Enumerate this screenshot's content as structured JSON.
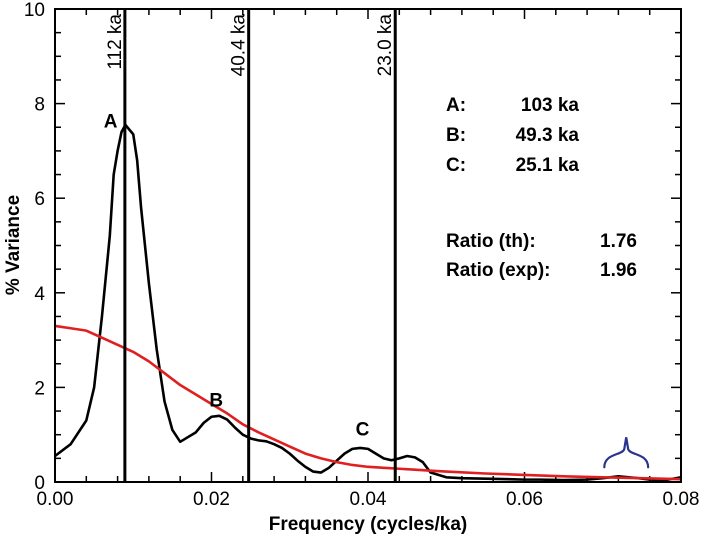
{
  "chart_data": {
    "type": "line",
    "xlabel": "Frequency (cycles/ka)",
    "ylabel": "% Variance",
    "xlim": [
      0,
      0.08
    ],
    "ylim": [
      0,
      10
    ],
    "x_ticks": [
      0.0,
      0.02,
      0.04,
      0.06,
      0.08
    ],
    "x_tick_labels": [
      "0.00",
      "0.02",
      "0.04",
      "0.06",
      "0.08"
    ],
    "y_ticks": [
      0,
      2,
      4,
      6,
      8,
      10
    ],
    "y_tick_labels": [
      "0",
      "2",
      "4",
      "6",
      "8",
      "10"
    ],
    "grid": false,
    "series": [
      {
        "color": "#000000",
        "points": [
          [
            0.0,
            0.55
          ],
          [
            0.002,
            0.8
          ],
          [
            0.004,
            1.3
          ],
          [
            0.005,
            2.0
          ],
          [
            0.006,
            3.5
          ],
          [
            0.007,
            5.2
          ],
          [
            0.0075,
            6.5
          ],
          [
            0.008,
            7.0
          ],
          [
            0.0085,
            7.4
          ],
          [
            0.009,
            7.55
          ],
          [
            0.0095,
            7.45
          ],
          [
            0.01,
            7.35
          ],
          [
            0.0105,
            6.8
          ],
          [
            0.011,
            5.8
          ],
          [
            0.012,
            4.2
          ],
          [
            0.013,
            2.8
          ],
          [
            0.014,
            1.7
          ],
          [
            0.015,
            1.1
          ],
          [
            0.016,
            0.85
          ],
          [
            0.017,
            0.95
          ],
          [
            0.018,
            1.05
          ],
          [
            0.019,
            1.25
          ],
          [
            0.02,
            1.38
          ],
          [
            0.021,
            1.4
          ],
          [
            0.022,
            1.32
          ],
          [
            0.023,
            1.15
          ],
          [
            0.024,
            1.0
          ],
          [
            0.025,
            0.92
          ],
          [
            0.026,
            0.88
          ],
          [
            0.027,
            0.86
          ],
          [
            0.028,
            0.8
          ],
          [
            0.029,
            0.72
          ],
          [
            0.03,
            0.6
          ],
          [
            0.031,
            0.45
          ],
          [
            0.032,
            0.32
          ],
          [
            0.033,
            0.22
          ],
          [
            0.034,
            0.2
          ],
          [
            0.035,
            0.3
          ],
          [
            0.036,
            0.45
          ],
          [
            0.037,
            0.6
          ],
          [
            0.038,
            0.7
          ],
          [
            0.039,
            0.72
          ],
          [
            0.04,
            0.7
          ],
          [
            0.041,
            0.6
          ],
          [
            0.042,
            0.5
          ],
          [
            0.043,
            0.46
          ],
          [
            0.044,
            0.5
          ],
          [
            0.045,
            0.55
          ],
          [
            0.046,
            0.52
          ],
          [
            0.047,
            0.42
          ],
          [
            0.048,
            0.2
          ],
          [
            0.05,
            0.1
          ],
          [
            0.052,
            0.08
          ],
          [
            0.055,
            0.07
          ],
          [
            0.058,
            0.06
          ],
          [
            0.06,
            0.05
          ],
          [
            0.062,
            0.05
          ],
          [
            0.065,
            0.04
          ],
          [
            0.068,
            0.05
          ],
          [
            0.07,
            0.08
          ],
          [
            0.072,
            0.12
          ],
          [
            0.074,
            0.09
          ],
          [
            0.076,
            0.05
          ],
          [
            0.078,
            0.04
          ],
          [
            0.08,
            0.1
          ]
        ]
      },
      {
        "color": "#e02020",
        "points": [
          [
            0.0,
            3.3
          ],
          [
            0.002,
            3.25
          ],
          [
            0.004,
            3.2
          ],
          [
            0.006,
            3.05
          ],
          [
            0.008,
            2.9
          ],
          [
            0.01,
            2.75
          ],
          [
            0.012,
            2.55
          ],
          [
            0.014,
            2.3
          ],
          [
            0.016,
            2.05
          ],
          [
            0.018,
            1.85
          ],
          [
            0.02,
            1.65
          ],
          [
            0.022,
            1.45
          ],
          [
            0.024,
            1.22
          ],
          [
            0.026,
            1.05
          ],
          [
            0.028,
            0.9
          ],
          [
            0.03,
            0.75
          ],
          [
            0.032,
            0.6
          ],
          [
            0.034,
            0.5
          ],
          [
            0.036,
            0.42
          ],
          [
            0.038,
            0.36
          ],
          [
            0.04,
            0.32
          ],
          [
            0.042,
            0.3
          ],
          [
            0.044,
            0.28
          ],
          [
            0.046,
            0.26
          ],
          [
            0.048,
            0.24
          ],
          [
            0.05,
            0.22
          ],
          [
            0.055,
            0.18
          ],
          [
            0.06,
            0.15
          ],
          [
            0.065,
            0.12
          ],
          [
            0.07,
            0.1
          ],
          [
            0.075,
            0.08
          ],
          [
            0.08,
            0.06
          ]
        ]
      }
    ],
    "vertical_lines": [
      {
        "x": 0.00893,
        "label": "112 ka"
      },
      {
        "x": 0.02475,
        "label": "40.4 ka"
      },
      {
        "x": 0.04348,
        "label": "23.0 ka"
      }
    ],
    "peak_labels": [
      {
        "x": 0.0071,
        "y": 7.5,
        "text": "A"
      },
      {
        "x": 0.0206,
        "y": 1.6,
        "text": "B"
      },
      {
        "x": 0.0393,
        "y": 0.98,
        "text": "C"
      }
    ],
    "annotations": {
      "periods": [
        {
          "label": "A:",
          "value": "103 ka"
        },
        {
          "label": "B:",
          "value": "49.3 ka"
        },
        {
          "label": "C:",
          "value": "25.1 ka"
        }
      ],
      "ratios": [
        {
          "label": "Ratio (th):",
          "value": "1.76"
        },
        {
          "label": "Ratio (exp):",
          "value": "1.96"
        }
      ]
    },
    "bracket": {
      "x_start": 0.0702,
      "x_end": 0.0758,
      "y": 0.67,
      "color": "#2a3390"
    }
  }
}
